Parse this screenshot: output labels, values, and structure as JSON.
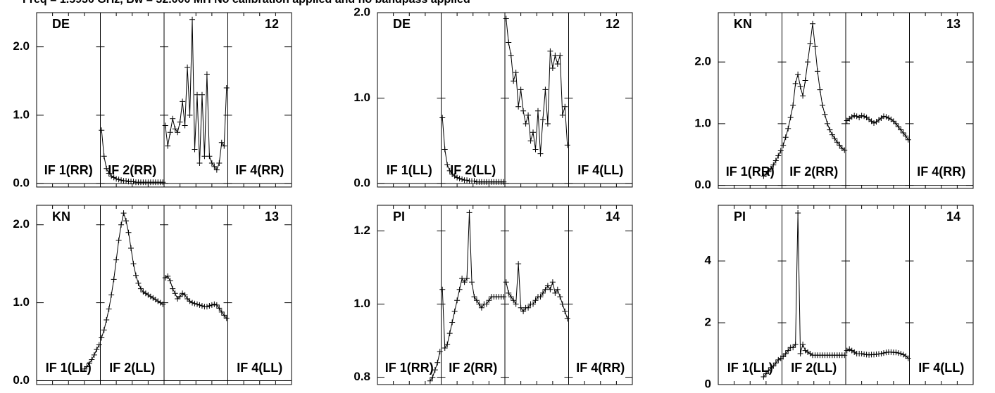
{
  "header": {
    "title": "Freq = 1.5930 GHz, Bw = 32.000 MH   No calibration applied and no bandpass applied"
  },
  "chart_data": [
    {
      "type": "line",
      "antenna": "DE",
      "baseline": "12",
      "ylim": [
        -0.05,
        2.5
      ],
      "yticks": [
        "0.0",
        "1.0",
        "2.0"
      ],
      "ytick_values": [
        0,
        1,
        2
      ],
      "segment_labels": [
        "IF 1(RR)",
        "IF 2(RR)",
        "",
        "IF 4(RR)"
      ],
      "series": [
        {
          "values": []
        },
        {
          "values": [
            0.78,
            0.4,
            0.22,
            0.15,
            0.11,
            0.09,
            0.07,
            0.06,
            0.05,
            0.04,
            0.04,
            0.03,
            0.03,
            0.03,
            0.02,
            0.02,
            0.02,
            0.02,
            0.02,
            0.02,
            0.02,
            0.02,
            0.02,
            0.02,
            0.02,
            0.02
          ]
        },
        {
          "values": [
            0.85,
            0.55,
            0.75,
            0.95,
            0.8,
            0.75,
            0.9,
            1.2,
            0.85,
            1.7,
            1.0,
            2.4,
            0.5,
            1.3,
            0.3,
            1.3,
            0.4,
            1.6,
            0.4,
            0.3,
            0.25,
            0.2,
            0.3,
            0.6,
            0.55,
            1.4
          ]
        },
        {
          "values": []
        }
      ]
    },
    {
      "type": "line",
      "antenna": "DE",
      "baseline": "12",
      "ylim": [
        -0.04,
        2.0
      ],
      "yticks": [
        "0.0",
        "1.0",
        "2.0"
      ],
      "ytick_values": [
        0,
        1,
        2
      ],
      "segment_labels": [
        "IF 1(LL)",
        "IF 2(LL)",
        "",
        "IF 4(LL)"
      ],
      "series": [
        {
          "values": []
        },
        {
          "values": [
            0.77,
            0.4,
            0.22,
            0.15,
            0.11,
            0.09,
            0.07,
            0.06,
            0.05,
            0.04,
            0.04,
            0.03,
            0.03,
            0.03,
            0.02,
            0.02,
            0.02,
            0.02,
            0.02,
            0.02,
            0.02,
            0.02,
            0.02,
            0.02,
            0.02,
            0.02
          ]
        },
        {
          "values": [
            1.93,
            1.65,
            1.5,
            1.2,
            1.3,
            0.9,
            1.1,
            0.85,
            0.7,
            0.8,
            0.5,
            0.6,
            0.4,
            0.85,
            0.35,
            0.75,
            1.1,
            0.7,
            1.55,
            1.35,
            1.5,
            1.4,
            1.5,
            0.8,
            0.9,
            0.45
          ]
        },
        {
          "values": []
        }
      ]
    },
    {
      "type": "line",
      "antenna": "KN",
      "baseline": "13",
      "ylim": [
        -0.05,
        2.8
      ],
      "yticks": [
        "0.0",
        "1.0",
        "2.0"
      ],
      "ytick_values": [
        0,
        1,
        2
      ],
      "segment_labels": [
        "IF 1(RR)",
        "IF 2(RR)",
        "",
        "IF 4(RR)"
      ],
      "series": [
        {
          "values": [
            0.15,
            0.18,
            0.22,
            0.27,
            0.33,
            0.4,
            0.48,
            0.56
          ]
        },
        {
          "values": [
            0.65,
            0.78,
            0.92,
            1.1,
            1.3,
            1.65,
            1.8,
            1.6,
            1.45,
            1.7,
            2.0,
            2.3,
            2.62,
            2.25,
            1.85,
            1.55,
            1.3,
            1.15,
            1.0,
            0.9,
            0.82,
            0.76,
            0.7,
            0.65,
            0.6,
            0.57
          ]
        },
        {
          "values": [
            1.05,
            1.08,
            1.11,
            1.13,
            1.12,
            1.1,
            1.13,
            1.12,
            1.1,
            1.07,
            1.04,
            1.01,
            1.03,
            1.06,
            1.09,
            1.12,
            1.11,
            1.09,
            1.07,
            1.04,
            1.0,
            0.95,
            0.9,
            0.85,
            0.8,
            0.74
          ]
        },
        {
          "values": []
        }
      ]
    },
    {
      "type": "line",
      "antenna": "KN",
      "baseline": "13",
      "ylim": [
        -0.05,
        2.25
      ],
      "yticks": [
        "0.0",
        "1.0",
        "2.0"
      ],
      "ytick_values": [
        0,
        1,
        2
      ],
      "segment_labels": [
        "IF 1(LL)",
        "IF 2(LL)",
        "",
        "IF 4(LL)"
      ],
      "series": [
        {
          "values": [
            0.15,
            0.18,
            0.22,
            0.27,
            0.33,
            0.4,
            0.46
          ]
        },
        {
          "values": [
            0.55,
            0.65,
            0.78,
            0.92,
            1.1,
            1.3,
            1.55,
            1.8,
            2.0,
            2.15,
            2.05,
            1.9,
            1.7,
            1.5,
            1.35,
            1.25,
            1.18,
            1.14,
            1.12,
            1.1,
            1.08,
            1.06,
            1.04,
            1.02,
            1.0,
            0.98
          ]
        },
        {
          "values": [
            1.32,
            1.34,
            1.28,
            1.18,
            1.12,
            1.05,
            1.08,
            1.12,
            1.1,
            1.05,
            1.02,
            1.0,
            0.99,
            0.98,
            0.97,
            0.96,
            0.95,
            0.95,
            0.96,
            0.97,
            0.98,
            0.97,
            0.93,
            0.88,
            0.84,
            0.8
          ]
        },
        {
          "values": []
        }
      ]
    },
    {
      "type": "line",
      "antenna": "PI",
      "baseline": "14",
      "ylim": [
        0.78,
        1.27
      ],
      "yticks": [
        "0.8",
        "1.0",
        "1.2"
      ],
      "ytick_values": [
        0.8,
        1.0,
        1.2
      ],
      "segment_labels": [
        "IF 1(RR)",
        "IF 2(RR)",
        "",
        "IF 4(RR)"
      ],
      "series": [
        {
          "values": [
            0.79,
            0.8,
            0.82,
            0.84,
            0.87
          ]
        },
        {
          "values": [
            1.04,
            0.88,
            0.89,
            0.92,
            0.95,
            0.98,
            1.01,
            1.04,
            1.07,
            1.06,
            1.07,
            1.25,
            1.06,
            1.02,
            1.01,
            1.0,
            0.99,
            1.0,
            1.0,
            1.01,
            1.02,
            1.02,
            1.02,
            1.02,
            1.02,
            1.02
          ]
        },
        {
          "values": [
            1.06,
            1.03,
            1.02,
            1.01,
            1.0,
            1.11,
            0.99,
            0.98,
            0.99,
            0.99,
            1.0,
            1.0,
            1.01,
            1.02,
            1.02,
            1.03,
            1.04,
            1.05,
            1.04,
            1.06,
            1.03,
            1.04,
            1.02,
            1.0,
            0.98,
            0.96
          ]
        },
        {
          "values": []
        }
      ]
    },
    {
      "type": "line",
      "antenna": "PI",
      "baseline": "14",
      "ylim": [
        0,
        5.8
      ],
      "yticks": [
        "0",
        "2",
        "4"
      ],
      "ytick_values": [
        0,
        2,
        4
      ],
      "segment_labels": [
        "IF 1(LL)",
        "IF 2(LL)",
        "",
        "IF 4(LL)"
      ],
      "series": [
        {
          "values": [
            0.25,
            0.35,
            0.45,
            0.55,
            0.6,
            0.7,
            0.8,
            0.85
          ]
        },
        {
          "values": [
            0.9,
            1.0,
            1.1,
            1.2,
            1.2,
            1.3,
            5.55,
            1.0,
            1.3,
            1.1,
            1.05,
            1.0,
            0.95,
            0.95,
            0.95,
            0.95,
            0.95,
            0.95,
            0.95,
            0.95,
            0.95,
            0.95,
            0.95,
            0.95,
            0.95,
            0.95
          ]
        },
        {
          "values": [
            1.1,
            1.15,
            1.1,
            1.05,
            1.0,
            1.0,
            1.0,
            0.98,
            0.97,
            0.96,
            0.97,
            0.97,
            0.98,
            0.99,
            1.0,
            1.02,
            1.04,
            1.05,
            1.05,
            1.04,
            1.04,
            1.02,
            1.0,
            0.97,
            0.92,
            0.85
          ]
        },
        {
          "values": []
        }
      ]
    }
  ]
}
